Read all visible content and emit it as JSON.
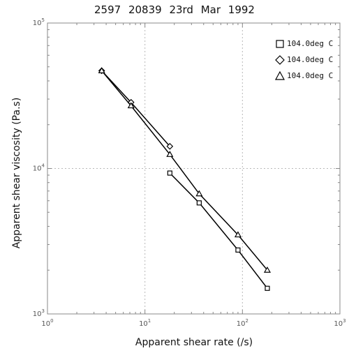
{
  "chart_data": {
    "type": "scatter",
    "title": "2597   20839   23rd Mar 1992",
    "xlabel": "Apparent shear rate (/s)",
    "ylabel": "Apparent shear viscosity (Pa.s)",
    "xscale": "log",
    "yscale": "log",
    "xlim": [
      1,
      1000
    ],
    "ylim": [
      1000,
      100000
    ],
    "grid": true,
    "legend_position": "top-right",
    "x_ticks": [
      {
        "value": 1,
        "base": "10",
        "exp": "0"
      },
      {
        "value": 10,
        "base": "10",
        "exp": "1"
      },
      {
        "value": 100,
        "base": "10",
        "exp": "2"
      },
      {
        "value": 1000,
        "base": "10",
        "exp": "3"
      }
    ],
    "y_ticks": [
      {
        "value": 1000,
        "base": "10",
        "exp": "3"
      },
      {
        "value": 10000,
        "base": "10",
        "exp": "4"
      },
      {
        "value": 100000,
        "base": "10",
        "exp": "5"
      }
    ],
    "series": [
      {
        "name": "104.0deg C",
        "marker": "square",
        "x": [
          18,
          36,
          90,
          180
        ],
        "y": [
          9300,
          5800,
          2750,
          1500
        ]
      },
      {
        "name": "104.0deg C",
        "marker": "diamond",
        "x": [
          3.6,
          7.2,
          18
        ],
        "y": [
          47000,
          28500,
          14200
        ]
      },
      {
        "name": "104.0deg C",
        "marker": "triangle",
        "x": [
          3.6,
          7.2,
          18,
          36,
          90,
          180
        ],
        "y": [
          47000,
          27000,
          12500,
          6700,
          3500,
          2000
        ]
      }
    ]
  }
}
